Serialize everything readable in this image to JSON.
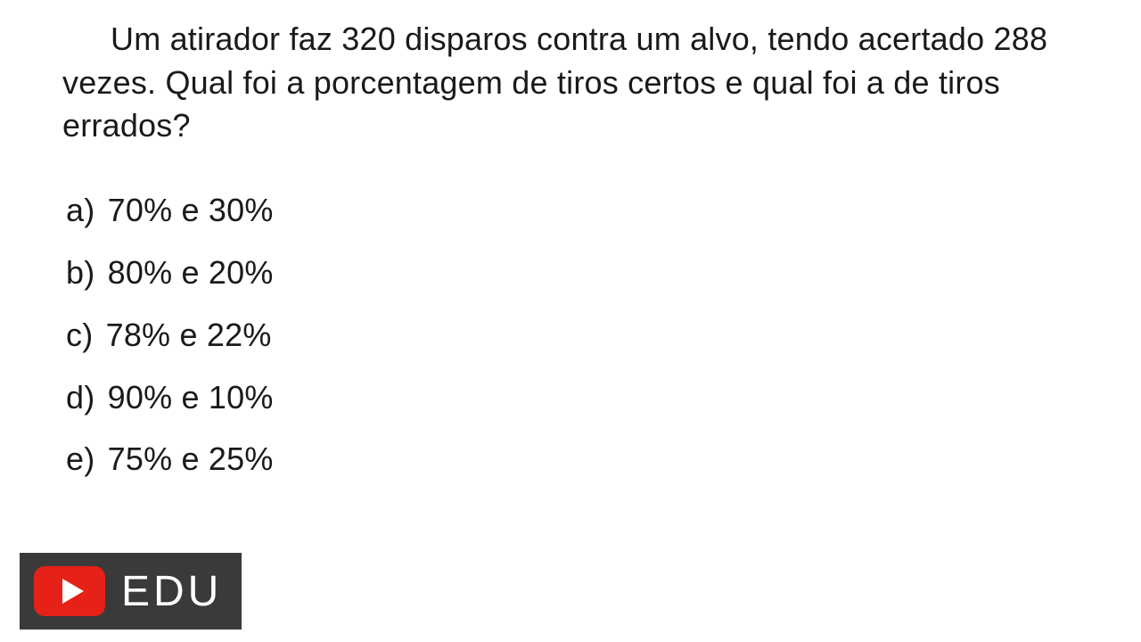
{
  "question": {
    "text": "Um atirador faz 320 disparos contra um alvo, tendo acertado 288 vezes. Qual foi a porcentagem de tiros certos e qual foi a de tiros errados?",
    "text_color": "#1a1a1a",
    "fontsize": 36
  },
  "options": [
    {
      "label": "a)",
      "text": "70% e 30%"
    },
    {
      "label": "b)",
      "text": "80% e 20%"
    },
    {
      "label": "c)",
      "text": "78% e 22%"
    },
    {
      "label": "d)",
      "text": "90% e 10%"
    },
    {
      "label": "e)",
      "text": "75% e 25%"
    }
  ],
  "badge": {
    "text": "EDU",
    "background_color": "#3a3a3a",
    "text_color": "#ffffff",
    "icon_bg": "#e62117",
    "icon_play_color": "#ffffff"
  },
  "page": {
    "background_color": "#ffffff"
  }
}
